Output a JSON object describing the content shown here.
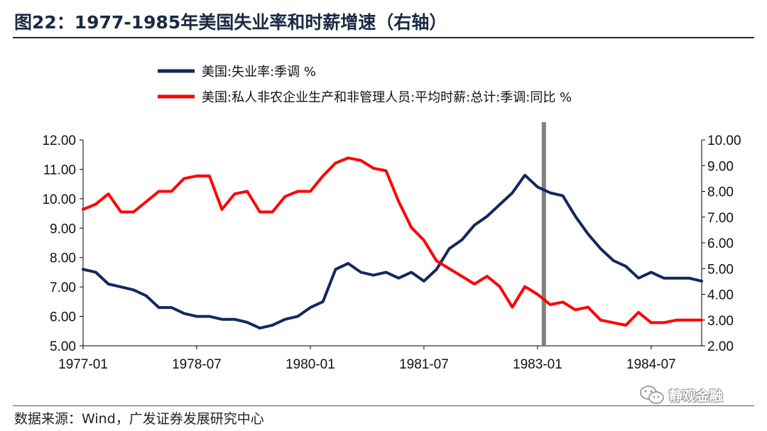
{
  "title": "图22：1977-1985年美国失业率和时薪增速（右轴）",
  "source": "数据来源：Wind，广发证券发展研究中心",
  "watermark": "静观金融",
  "icons": {
    "watermark_icon": "wechat-icon"
  },
  "colors": {
    "unemployment": "#14285e",
    "wages": "#ff0000",
    "marker_bar": "#808080",
    "title": "#1a2a44"
  },
  "chart_data": {
    "type": "line",
    "legend": {
      "placement": "top-left",
      "entries": [
        "美国:失业率:季调 %",
        "美国:私人非农企业生产和非管理人员:平均时薪:总计:季调:同比 %"
      ]
    },
    "x_ticks": [
      "1977-01",
      "1978-07",
      "1980-01",
      "1981-07",
      "1983-01",
      "1984-07"
    ],
    "y_left": {
      "ylim": [
        5,
        12
      ],
      "ticks": [
        "5.00",
        "6.00",
        "7.00",
        "8.00",
        "9.00",
        "10.00",
        "11.00",
        "12.00"
      ]
    },
    "y_right": {
      "ylim": [
        2,
        10
      ],
      "ticks": [
        "2.00",
        "3.00",
        "4.00",
        "5.00",
        "6.00",
        "7.00",
        "8.00",
        "9.00",
        "10.00"
      ]
    },
    "grid": false,
    "marker": {
      "type": "vertical-bar",
      "x": "1983-02"
    },
    "series": [
      {
        "name": "美国:失业率:季调 %",
        "axis": "left",
        "x": [
          "1977-01",
          "1977-03",
          "1977-05",
          "1977-07",
          "1977-09",
          "1977-11",
          "1978-01",
          "1978-03",
          "1978-05",
          "1978-07",
          "1978-09",
          "1978-11",
          "1979-01",
          "1979-03",
          "1979-05",
          "1979-07",
          "1979-09",
          "1979-11",
          "1980-01",
          "1980-03",
          "1980-05",
          "1980-07",
          "1980-09",
          "1980-11",
          "1981-01",
          "1981-03",
          "1981-05",
          "1981-07",
          "1981-09",
          "1981-11",
          "1982-01",
          "1982-03",
          "1982-05",
          "1982-07",
          "1982-09",
          "1982-11",
          "1983-01",
          "1983-03",
          "1983-05",
          "1983-07",
          "1983-09",
          "1983-11",
          "1984-01",
          "1984-03",
          "1984-05",
          "1984-07",
          "1984-09",
          "1984-11",
          "1985-01",
          "1985-03"
        ],
        "values": [
          7.6,
          7.5,
          7.1,
          7.0,
          6.9,
          6.7,
          6.3,
          6.3,
          6.1,
          6.0,
          6.0,
          5.9,
          5.9,
          5.8,
          5.6,
          5.7,
          5.9,
          6.0,
          6.3,
          6.5,
          7.6,
          7.8,
          7.5,
          7.4,
          7.5,
          7.3,
          7.5,
          7.2,
          7.6,
          8.3,
          8.6,
          9.1,
          9.4,
          9.8,
          10.2,
          10.8,
          10.4,
          10.2,
          10.1,
          9.4,
          8.8,
          8.3,
          7.9,
          7.7,
          7.3,
          7.5,
          7.3,
          7.3,
          7.3,
          7.2
        ]
      },
      {
        "name": "美国:私人非农企业生产和非管理人员:平均时薪:总计:季调:同比 %",
        "axis": "right",
        "x": [
          "1977-01",
          "1977-03",
          "1977-05",
          "1977-07",
          "1977-09",
          "1977-11",
          "1978-01",
          "1978-03",
          "1978-05",
          "1978-07",
          "1978-09",
          "1978-11",
          "1979-01",
          "1979-03",
          "1979-05",
          "1979-07",
          "1979-09",
          "1979-11",
          "1980-01",
          "1980-03",
          "1980-05",
          "1980-07",
          "1980-09",
          "1980-11",
          "1981-01",
          "1981-03",
          "1981-05",
          "1981-07",
          "1981-09",
          "1981-11",
          "1982-01",
          "1982-03",
          "1982-05",
          "1982-07",
          "1982-09",
          "1982-11",
          "1983-01",
          "1983-03",
          "1983-05",
          "1983-07",
          "1983-09",
          "1983-11",
          "1984-01",
          "1984-03",
          "1984-05",
          "1984-07",
          "1984-09",
          "1984-11",
          "1985-01",
          "1985-03"
        ],
        "values": [
          7.3,
          7.5,
          7.9,
          7.2,
          7.2,
          7.6,
          8.0,
          8.0,
          8.5,
          8.6,
          8.6,
          7.3,
          7.9,
          8.0,
          7.2,
          7.2,
          7.8,
          8.0,
          8.0,
          8.6,
          9.1,
          9.3,
          9.2,
          8.9,
          8.8,
          7.6,
          6.6,
          6.1,
          5.3,
          5.0,
          4.7,
          4.4,
          4.7,
          4.3,
          3.5,
          4.3,
          4.0,
          3.6,
          3.7,
          3.4,
          3.5,
          3.0,
          2.9,
          2.8,
          3.3,
          2.9,
          2.9,
          3.0,
          3.0,
          3.0
        ]
      }
    ]
  }
}
